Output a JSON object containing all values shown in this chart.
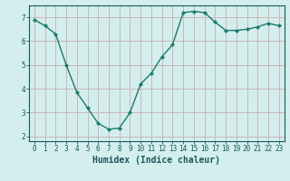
{
  "x": [
    0,
    1,
    2,
    3,
    4,
    5,
    6,
    7,
    8,
    9,
    10,
    11,
    12,
    13,
    14,
    15,
    16,
    17,
    18,
    19,
    20,
    21,
    22,
    23
  ],
  "y": [
    6.9,
    6.65,
    6.3,
    5.0,
    3.85,
    3.2,
    2.55,
    2.3,
    2.35,
    3.0,
    4.2,
    4.65,
    5.35,
    5.85,
    7.2,
    7.25,
    7.2,
    6.8,
    6.45,
    6.45,
    6.5,
    6.6,
    6.75,
    6.65
  ],
  "line_color": "#1a7a6e",
  "marker": "D",
  "marker_size": 2.2,
  "bg_color": "#d4eeee",
  "grid_color": "#c8b8b8",
  "xlabel": "Humidex (Indice chaleur)",
  "xlim": [
    -0.5,
    23.5
  ],
  "ylim": [
    1.8,
    7.5
  ],
  "yticks": [
    2,
    3,
    4,
    5,
    6,
    7
  ],
  "xticks": [
    0,
    1,
    2,
    3,
    4,
    5,
    6,
    7,
    8,
    9,
    10,
    11,
    12,
    13,
    14,
    15,
    16,
    17,
    18,
    19,
    20,
    21,
    22,
    23
  ],
  "tick_label_fontsize": 5.5,
  "xlabel_fontsize": 7,
  "line_width": 1.0,
  "ax_color": "#1a5858"
}
